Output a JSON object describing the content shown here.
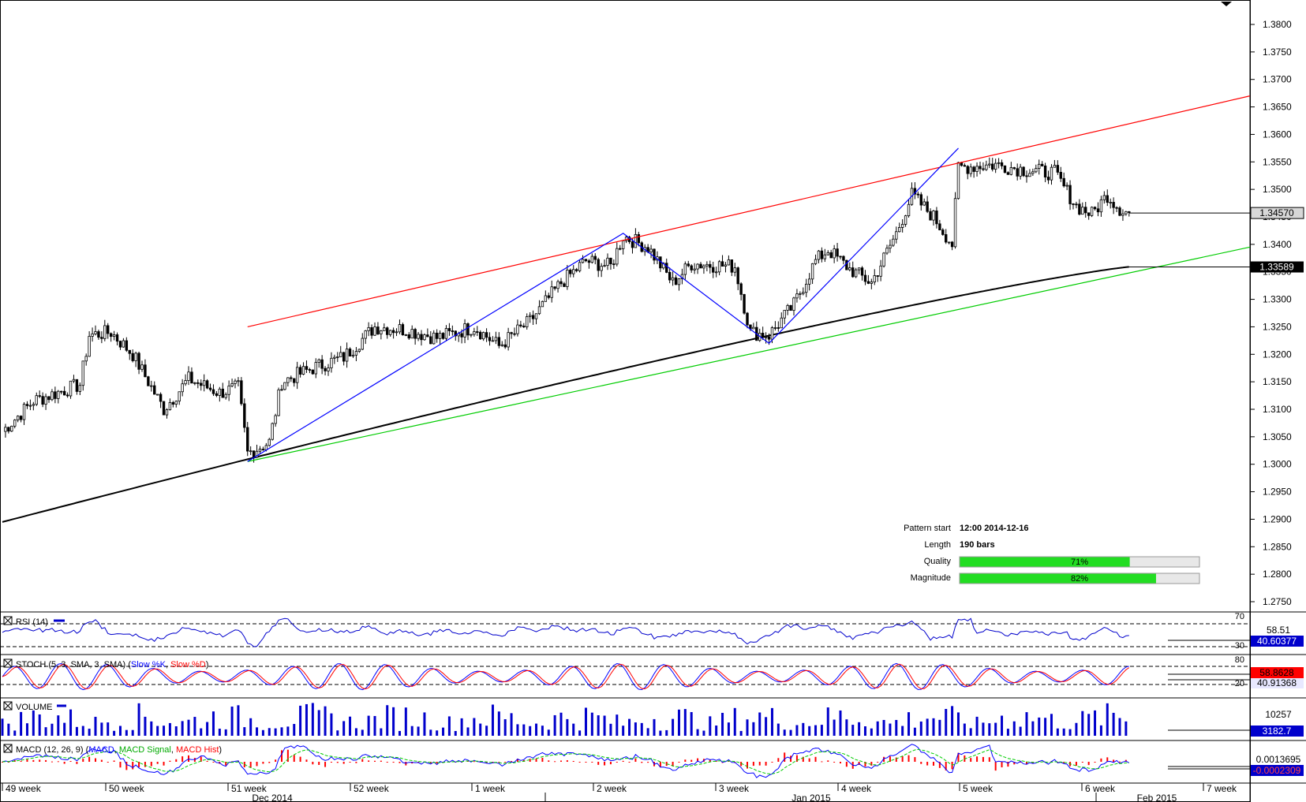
{
  "chart_data": {
    "type": "candlestick",
    "instrument_scale": "price",
    "ylim": [
      1.273,
      1.383
    ],
    "y_ticks": [
      "1.3800",
      "1.3750",
      "1.3700",
      "1.3650",
      "1.3600",
      "1.3550",
      "1.3500",
      "1.3450",
      "1.3400",
      "1.3350",
      "1.3300",
      "1.3250",
      "1.3200",
      "1.3150",
      "1.3100",
      "1.3050",
      "1.3000",
      "1.2950",
      "1.2900",
      "1.2850",
      "1.2800",
      "1.2750"
    ],
    "last_price_label": "1.34570",
    "sma_label": "1.33589",
    "week_labels": [
      "49 week",
      "50 week",
      "51 week",
      "52 week",
      "1 week",
      "2 week",
      "3 week",
      "4 week",
      "5 week",
      "6 week",
      "7 week"
    ],
    "month_labels": [
      "Dec 2014",
      "Jan 2015",
      "Feb 2015"
    ],
    "pattern": {
      "resistance_line": [
        [
          1.325
        ],
        [
          1.367
        ]
      ],
      "support_line": [
        [
          1.3005
        ],
        [
          1.3395
        ]
      ],
      "zigzag": [
        1.3005,
        1.342,
        1.322,
        1.3575
      ]
    },
    "info_panel": {
      "pattern_start_label": "Pattern start",
      "pattern_start_value": "12:00 2014-12-16",
      "length_label": "Length",
      "length_value": "190 bars",
      "quality_label": "Quality",
      "quality_value": 71,
      "quality_text": "71%",
      "magnitude_label": "Magnitude",
      "magnitude_value": 82,
      "magnitude_text": "82%"
    },
    "indicators": {
      "rsi": {
        "title": "RSI (14)",
        "levels": [
          "70",
          "30"
        ],
        "values": [
          "58.51",
          "40.60377"
        ]
      },
      "stoch": {
        "title_prefix": "STOCH (5, 3, SMA, 3, SMA)",
        "k_label": "Slow %K",
        "d_label": "Slow %D",
        "levels": [
          "80",
          "20"
        ],
        "values": [
          "58.8628",
          "40.91368"
        ]
      },
      "volume": {
        "title": "VOLUME",
        "values": [
          "10257",
          "3182.7"
        ]
      },
      "macd": {
        "title_prefix": "MACD (12, 26, 9)",
        "macd_label": "MACD",
        "signal_label": "MACD Signal",
        "hist_label": "MACD Hist",
        "values": [
          "0.0013695",
          "-0.0002309"
        ]
      }
    }
  },
  "colors": {
    "bull": "#ffffff",
    "bear": "#000000",
    "resistance": "#ff0000",
    "support": "#00cc00",
    "zigzag": "#0000ff",
    "sma": "#000000",
    "rsi": "#0000cc",
    "stoch_k": "#0000ff",
    "stoch_d": "#ff0000",
    "volume": "#0000cc",
    "macd": "#0000ff",
    "macd_signal": "#00cc00",
    "macd_hist": "#ff0000",
    "bar_fill": "#22dd22"
  }
}
